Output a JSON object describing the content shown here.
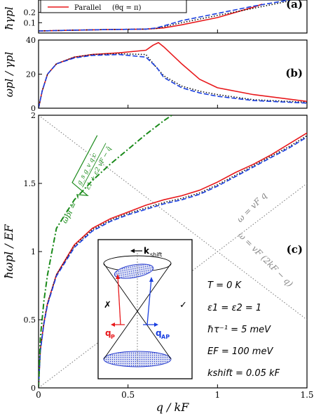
{
  "chart_data": [
    {
      "panel": "(a)",
      "type": "line",
      "ylabel": "ħγpl",
      "yticks": [
        "0.1",
        "0.2"
      ],
      "ylim": [
        0,
        0.32
      ],
      "xlim": [
        0,
        1.5
      ],
      "legend": {
        "position": "top-left",
        "entries": [
          {
            "text": "Parallel",
            "extra": "(θq = π)",
            "color": "#e8191c",
            "style": "solid"
          }
        ]
      },
      "series": [
        {
          "name": "Parallel",
          "color": "#e8191c",
          "style": "solid",
          "x": [
            0,
            0.2,
            0.4,
            0.6,
            0.7,
            0.8,
            1.0,
            1.2,
            1.25
          ],
          "y": [
            0.02,
            0.028,
            0.034,
            0.038,
            0.05,
            0.08,
            0.15,
            0.25,
            0.28
          ]
        },
        {
          "color": "#111111",
          "style": "dotted",
          "x": [
            0,
            0.2,
            0.4,
            0.6,
            0.66,
            0.8,
            1.0,
            1.2,
            1.4
          ],
          "y": [
            0.02,
            0.028,
            0.034,
            0.038,
            0.045,
            0.1,
            0.17,
            0.24,
            0.31
          ]
        },
        {
          "color": "#1a3fe0",
          "style": "dashed",
          "x": [
            0,
            0.2,
            0.4,
            0.6,
            0.66,
            0.8,
            1.0,
            1.2,
            1.4
          ],
          "y": [
            0.02,
            0.028,
            0.034,
            0.038,
            0.05,
            0.12,
            0.19,
            0.26,
            0.32
          ]
        }
      ]
    },
    {
      "panel": "(b)",
      "type": "line",
      "ylabel": "ωpl / γpl",
      "yticks": [
        "0",
        "20",
        "40"
      ],
      "ylim": [
        0,
        40
      ],
      "xlim": [
        0,
        1.5
      ],
      "series": [
        {
          "color": "#e8191c",
          "style": "solid",
          "x": [
            0,
            0.02,
            0.05,
            0.1,
            0.2,
            0.3,
            0.45,
            0.6,
            0.64,
            0.67,
            0.7,
            0.8,
            0.9,
            1.0,
            1.2,
            1.5
          ],
          "y": [
            0,
            10,
            20,
            26,
            30,
            31.5,
            32.5,
            34,
            37,
            38.5,
            36,
            26,
            17,
            12,
            8,
            4
          ]
        },
        {
          "color": "#111111",
          "style": "dotted",
          "x": [
            0,
            0.02,
            0.05,
            0.1,
            0.2,
            0.3,
            0.45,
            0.6,
            0.65,
            0.7,
            0.8,
            0.9,
            1.0,
            1.2,
            1.5
          ],
          "y": [
            0,
            10,
            20,
            26,
            30,
            31.5,
            32,
            31.5,
            25,
            19,
            13,
            10,
            8,
            5,
            3.5
          ]
        },
        {
          "color": "#1a3fe0",
          "style": "dashed",
          "x": [
            0,
            0.02,
            0.05,
            0.1,
            0.2,
            0.3,
            0.45,
            0.6,
            0.66,
            0.7,
            0.8,
            0.9,
            1.0,
            1.2,
            1.5
          ],
          "y": [
            0,
            10,
            20,
            26,
            29.5,
            31,
            31.5,
            30,
            24,
            18,
            12,
            9,
            7,
            4.5,
            3
          ]
        }
      ]
    },
    {
      "panel": "(c)",
      "type": "line",
      "ylabel": "ħωpl / EF",
      "xlabel": "q / kF",
      "xlim": [
        0,
        1.5
      ],
      "ylim": [
        0,
        2
      ],
      "xticks": [
        "0",
        "0.5",
        "1",
        "1.5"
      ],
      "yticks": [
        "0",
        "0.5",
        "1",
        "1.5",
        "2"
      ],
      "series": [
        {
          "color": "#e8191c",
          "style": "solid",
          "x": [
            0,
            0.01,
            0.03,
            0.05,
            0.1,
            0.2,
            0.3,
            0.4,
            0.5,
            0.6,
            0.7,
            0.8,
            0.9,
            1.0,
            1.1,
            1.2,
            1.3,
            1.4,
            1.5
          ],
          "y": [
            0,
            0.28,
            0.48,
            0.62,
            0.83,
            1.05,
            1.17,
            1.24,
            1.29,
            1.34,
            1.38,
            1.41,
            1.45,
            1.51,
            1.58,
            1.64,
            1.71,
            1.79,
            1.87
          ]
        },
        {
          "color": "#111111",
          "style": "dotted",
          "x": [
            0,
            0.01,
            0.03,
            0.05,
            0.1,
            0.2,
            0.3,
            0.4,
            0.5,
            0.6,
            0.7,
            0.8,
            0.9,
            1.0,
            1.1,
            1.2,
            1.3,
            1.4,
            1.5
          ],
          "y": [
            0,
            0.28,
            0.48,
            0.62,
            0.83,
            1.04,
            1.16,
            1.23,
            1.28,
            1.32,
            1.36,
            1.39,
            1.43,
            1.49,
            1.56,
            1.63,
            1.7,
            1.77,
            1.85
          ]
        },
        {
          "color": "#1a3fe0",
          "style": "dashed",
          "x": [
            0,
            0.01,
            0.03,
            0.05,
            0.1,
            0.2,
            0.3,
            0.4,
            0.5,
            0.6,
            0.7,
            0.8,
            0.9,
            1.0,
            1.1,
            1.2,
            1.3,
            1.4,
            1.5
          ],
          "y": [
            0,
            0.27,
            0.47,
            0.61,
            0.82,
            1.03,
            1.15,
            1.22,
            1.27,
            1.31,
            1.35,
            1.38,
            1.42,
            1.48,
            1.55,
            1.62,
            1.69,
            1.76,
            1.84
          ]
        },
        {
          "color": "#1a8a1a",
          "style": "dashdot",
          "x": [
            0,
            0.01,
            0.03,
            0.05,
            0.1,
            0.2,
            0.3,
            0.4,
            0.5,
            0.6,
            0.7,
            0.8
          ],
          "y": [
            0,
            0.37,
            0.64,
            0.83,
            1.17,
            1.38,
            1.52,
            1.64,
            1.75,
            1.86,
            1.96,
            2.05
          ]
        },
        {
          "color": "#777777",
          "style": "dotted",
          "label": "ω = vF q",
          "x": [
            0,
            1.5
          ],
          "y": [
            0,
            1.5
          ]
        },
        {
          "color": "#777777",
          "style": "dotted",
          "label": "ω = vF (2kF − q)",
          "x": [
            0,
            1.5
          ],
          "y": [
            2,
            0.5
          ]
        }
      ],
      "annotations": {
        "formula_lhs": "ω̃pl =",
        "formula_num": "g_s g_v q c",
        "formula_den": "ε1 + ε2   vF − q̃",
        "params": [
          "T = 0 K",
          "ε1 = ε2 = 1",
          "ħτ⁻¹ = 5 meV",
          "EF = 100 meV",
          "kshift = 0.05 kF"
        ],
        "inset": {
          "k_label": "k",
          "k_sub": "shift",
          "qp_label": "q",
          "qp_sub": "P",
          "qap_label": "q",
          "qap_sub": "AP",
          "cross": "✗",
          "check": "✓"
        }
      }
    }
  ],
  "colors": {
    "red": "#e8191c",
    "blue": "#1a3fe0",
    "black": "#111111",
    "green": "#1a8a1a",
    "gray": "#777777"
  }
}
